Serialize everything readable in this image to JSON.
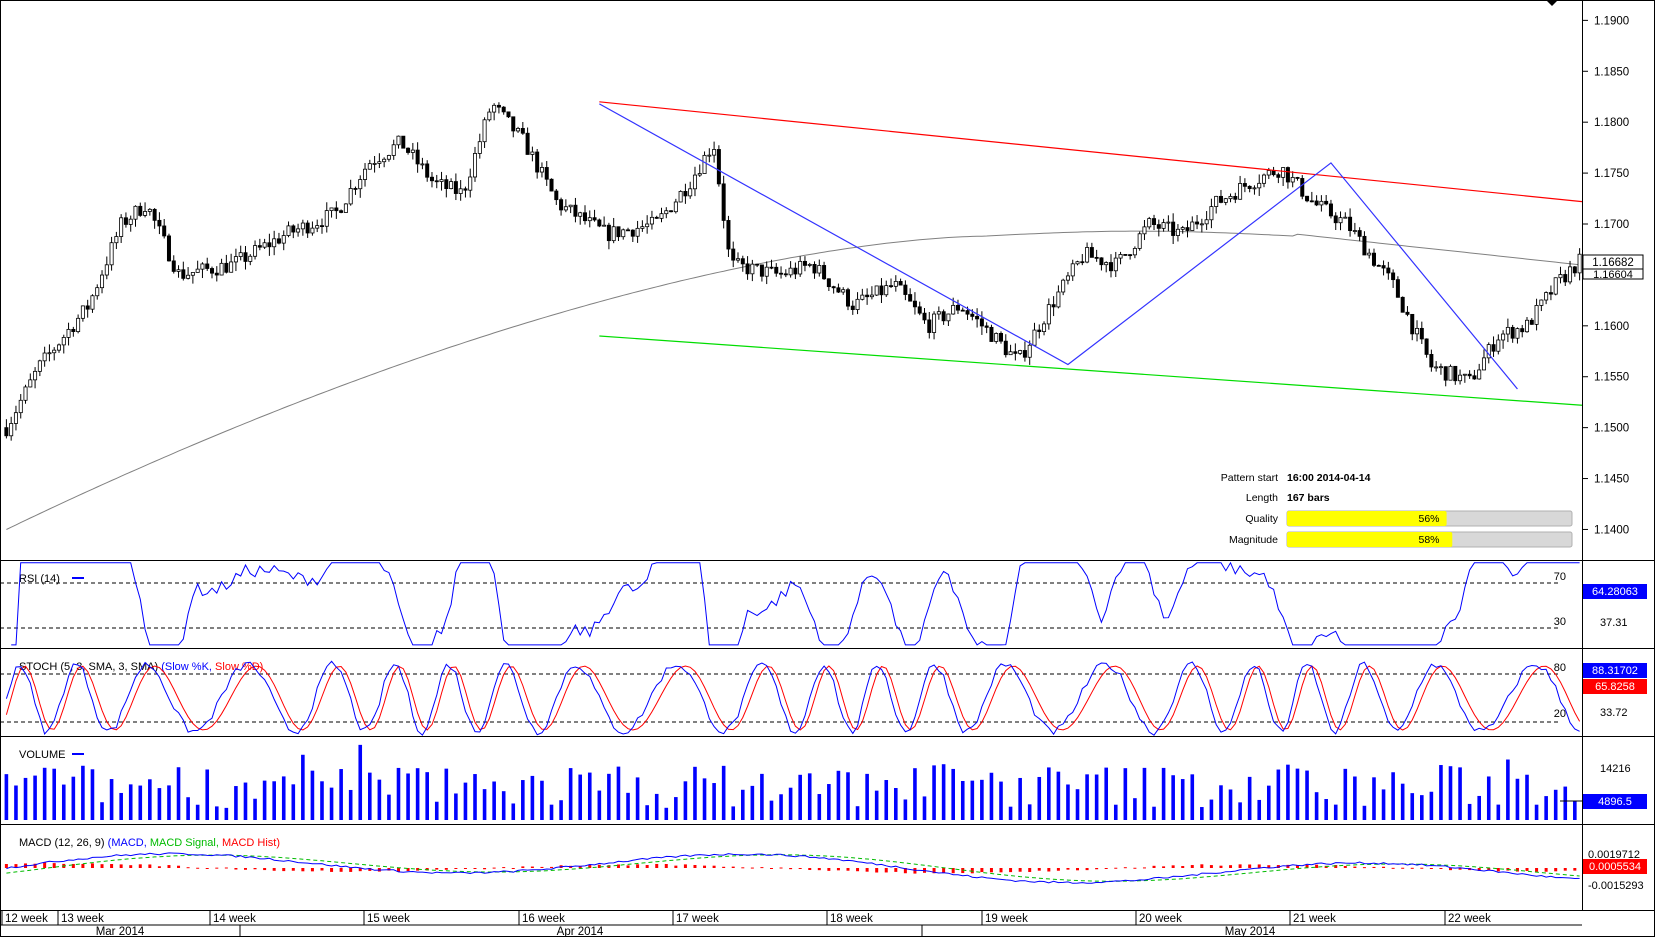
{
  "chart_data": [
    {
      "type": "candlestick",
      "panel": "price",
      "y_axis": {
        "ticks": [
          "1.1900",
          "1.1850",
          "1.1800",
          "1.1750",
          "1.1700",
          "1.1650",
          "1.1600",
          "1.1550",
          "1.1500",
          "1.1450",
          "1.1400"
        ],
        "ylim": [
          1.137,
          1.192
        ],
        "side": "right"
      },
      "price_labels": {
        "current": "1.16682",
        "previous": "1.16604"
      },
      "series": [
        {
          "name": "",
          "color": "#000000"
        }
      ],
      "overlays": {
        "moving_average_color": "#808080",
        "resistance_line": {
          "color": "#ff0000",
          "from": 1.182,
          "to": 1.1722
        },
        "support_line": {
          "color": "#00dd00",
          "from": 1.159,
          "to": 1.1522
        },
        "zigzag": {
          "color": "#3333ff",
          "points": [
            1.1818,
            1.1562,
            1.176,
            1.1538
          ]
        }
      },
      "pattern_info": {
        "pattern_start_label": "Pattern start",
        "pattern_start_value": "16:00 2014-04-14",
        "length_label": "Length",
        "length_value": "167 bars",
        "quality_label": "Quality",
        "quality_value": "56%",
        "quality_fraction": 0.56,
        "magnitude_label": "Magnitude",
        "magnitude_value": "58%",
        "magnitude_fraction": 0.58
      }
    },
    {
      "type": "line",
      "panel": "rsi",
      "label": "RSI (14)",
      "line_color": "#0000ff",
      "levels": [
        "70",
        "30"
      ],
      "y_axis_labels": {
        "current": "64.28063",
        "other": "37.31"
      }
    },
    {
      "type": "line",
      "panel": "stoch",
      "label_prefix": "STOCH (5, 3, SMA, 3, SMA)",
      "label_k": "(Slow %K,",
      "label_d": "Slow %D)",
      "k_color": "#0000ff",
      "d_color": "#ff0000",
      "levels": [
        "80",
        "20"
      ],
      "y_axis_labels": {
        "k_value": "88.31702",
        "d_value": "65.8258",
        "other": "33.72"
      }
    },
    {
      "type": "bar",
      "panel": "volume",
      "label": "VOLUME",
      "bar_color": "#0000ff",
      "y_axis_labels": {
        "top": "14216",
        "current": "4896.5"
      }
    },
    {
      "type": "line",
      "panel": "macd",
      "label_prefix": "MACD (12, 26, 9)",
      "label_macd": "(MACD,",
      "label_signal": "MACD Signal,",
      "label_hist": "MACD Hist)",
      "macd_color": "#0000ff",
      "signal_color": "#00bb00",
      "hist_color": "#ff0000",
      "y_axis_labels": {
        "top": "0.0019712",
        "current": "0.0005534",
        "bottom": "-0.0015293"
      }
    }
  ],
  "x_axis": {
    "weeks": [
      "12 week",
      "13 week",
      "14 week",
      "15 week",
      "16 week",
      "17 week",
      "18 week",
      "19 week",
      "20 week",
      "21 week",
      "22 week"
    ],
    "months": [
      "Mar 2014",
      "Apr 2014",
      "May 2014"
    ]
  }
}
